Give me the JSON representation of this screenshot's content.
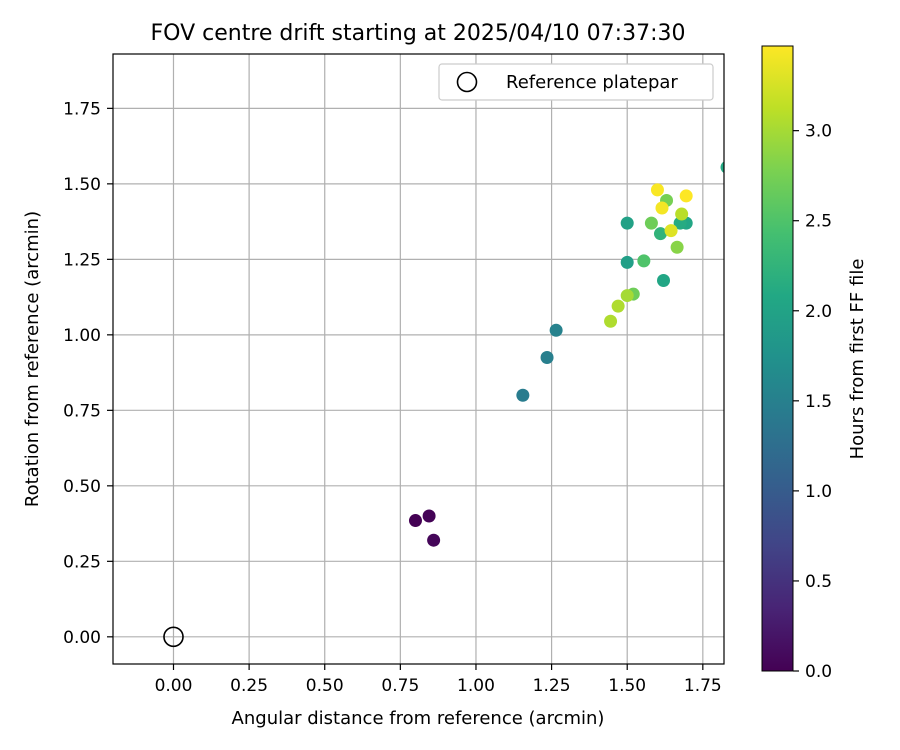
{
  "chart_data": {
    "type": "scatter",
    "title": "FOV centre drift starting at 2025/04/10 07:37:30",
    "xlabel": "Angular distance from reference (arcmin)",
    "ylabel": "Rotation from reference (arcmin)",
    "xlim": [
      -0.2,
      1.82
    ],
    "ylim": [
      -0.09,
      1.93
    ],
    "xticks": [
      "0.00",
      "0.25",
      "0.50",
      "0.75",
      "1.00",
      "1.25",
      "1.50",
      "1.75"
    ],
    "xtick_values": [
      0,
      0.25,
      0.5,
      0.75,
      1.0,
      1.25,
      1.5,
      1.75
    ],
    "yticks": [
      "0.00",
      "0.25",
      "0.50",
      "0.75",
      "1.00",
      "1.25",
      "1.50",
      "1.75"
    ],
    "ytick_values": [
      0,
      0.25,
      0.5,
      0.75,
      1.0,
      1.25,
      1.5,
      1.75
    ],
    "grid": true,
    "legend": {
      "placement": "top-right",
      "entries": [
        "Reference platepar"
      ]
    },
    "colormap": "viridis",
    "colorbar": {
      "label": "Hours from first FF file",
      "range": [
        0,
        3.47
      ],
      "ticks": [
        "0.0",
        "0.5",
        "1.0",
        "1.5",
        "2.0",
        "2.5",
        "3.0"
      ],
      "tick_values": [
        0,
        0.5,
        1.0,
        1.5,
        2.0,
        2.5,
        3.0
      ]
    },
    "reference_point": {
      "x": 0.0,
      "y": 0.0
    },
    "points": [
      {
        "x": 0.8,
        "y": 0.385,
        "hours": 0.0
      },
      {
        "x": 0.845,
        "y": 0.4,
        "hours": 0.02
      },
      {
        "x": 0.86,
        "y": 0.32,
        "hours": 0.05
      },
      {
        "x": 1.155,
        "y": 0.8,
        "hours": 1.45
      },
      {
        "x": 1.235,
        "y": 0.925,
        "hours": 1.48
      },
      {
        "x": 1.265,
        "y": 1.015,
        "hours": 1.52
      },
      {
        "x": 1.5,
        "y": 1.24,
        "hours": 1.95
      },
      {
        "x": 1.5,
        "y": 1.37,
        "hours": 1.98
      },
      {
        "x": 1.62,
        "y": 1.18,
        "hours": 2.05
      },
      {
        "x": 1.695,
        "y": 1.37,
        "hours": 2.05
      },
      {
        "x": 1.675,
        "y": 1.37,
        "hours": 2.12
      },
      {
        "x": 1.61,
        "y": 1.335,
        "hours": 2.25
      },
      {
        "x": 1.83,
        "y": 1.555,
        "hours": 2.1
      },
      {
        "x": 1.555,
        "y": 1.245,
        "hours": 2.5
      },
      {
        "x": 1.52,
        "y": 1.135,
        "hours": 2.7
      },
      {
        "x": 1.58,
        "y": 1.37,
        "hours": 2.7
      },
      {
        "x": 1.63,
        "y": 1.445,
        "hours": 2.75
      },
      {
        "x": 1.665,
        "y": 1.29,
        "hours": 2.85
      },
      {
        "x": 1.5,
        "y": 1.13,
        "hours": 3.0
      },
      {
        "x": 1.445,
        "y": 1.045,
        "hours": 3.05
      },
      {
        "x": 1.47,
        "y": 1.095,
        "hours": 3.05
      },
      {
        "x": 1.68,
        "y": 1.4,
        "hours": 3.1
      },
      {
        "x": 1.645,
        "y": 1.345,
        "hours": 3.3
      },
      {
        "x": 1.615,
        "y": 1.42,
        "hours": 3.42
      },
      {
        "x": 1.6,
        "y": 1.48,
        "hours": 3.45
      },
      {
        "x": 1.695,
        "y": 1.46,
        "hours": 3.47
      }
    ]
  }
}
